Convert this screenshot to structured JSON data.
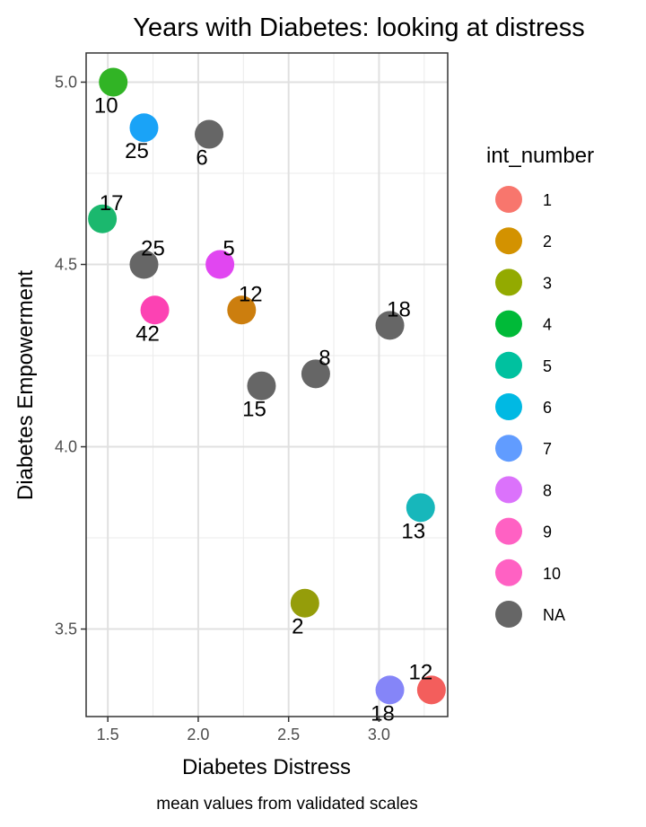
{
  "chart_data": {
    "type": "scatter",
    "title": "Years with Diabetes: looking at distress",
    "xlabel": "Diabetes Distress",
    "ylabel": "Diabetes Empowerment",
    "caption": "mean values from validated scales",
    "xlim": [
      1.38,
      3.38
    ],
    "ylim": [
      3.26,
      5.08
    ],
    "x_ticks": [
      1.5,
      2.0,
      2.5,
      3.0
    ],
    "x_tick_labels": [
      "1.5",
      "2.0",
      "2.5",
      "3.0"
    ],
    "y_ticks": [
      3.5,
      4.0,
      4.5,
      5.0
    ],
    "y_tick_labels": [
      "3.5",
      "4.0",
      "4.5",
      "5.0"
    ],
    "grid": true,
    "legend": {
      "title": "int_number",
      "position": "right",
      "entries": [
        {
          "label": "1",
          "color": "#F8766D"
        },
        {
          "label": "2",
          "color": "#D39200"
        },
        {
          "label": "3",
          "color": "#93AA00"
        },
        {
          "label": "4",
          "color": "#00BA38"
        },
        {
          "label": "5",
          "color": "#00C19F"
        },
        {
          "label": "6",
          "color": "#00B9E3"
        },
        {
          "label": "7",
          "color": "#619CFF"
        },
        {
          "label": "8",
          "color": "#DB72FB"
        },
        {
          "label": "9",
          "color": "#FF61C3"
        },
        {
          "label": "10",
          "color": "#FF61C3"
        },
        {
          "label": "NA",
          "color": "#666666"
        }
      ]
    },
    "points": [
      {
        "x": 1.53,
        "y": 5.0,
        "group": "4",
        "label": "10",
        "color": "#31B425",
        "label_pos": "below-left"
      },
      {
        "x": 1.7,
        "y": 4.875,
        "group": "7",
        "label": "25",
        "color": "#1AA3F7",
        "label_pos": "below-left"
      },
      {
        "x": 2.06,
        "y": 4.857,
        "group": "NA",
        "label": "6",
        "color": "#666666",
        "label_pos": "below-left"
      },
      {
        "x": 1.47,
        "y": 4.625,
        "group": "5",
        "label": "17",
        "color": "#1BB86E",
        "label_pos": "above-right"
      },
      {
        "x": 1.7,
        "y": 4.5,
        "group": "NA",
        "label": "25",
        "color": "#666666",
        "label_pos": "above-right"
      },
      {
        "x": 2.12,
        "y": 4.5,
        "group": "9",
        "label": "5",
        "color": "#E146F1",
        "label_pos": "above-right"
      },
      {
        "x": 1.76,
        "y": 4.375,
        "group": "10",
        "label": "42",
        "color": "#FC42B3",
        "label_pos": "below-left"
      },
      {
        "x": 2.24,
        "y": 4.375,
        "group": "2",
        "label": "12",
        "color": "#CC7E0E",
        "label_pos": "above-right"
      },
      {
        "x": 3.06,
        "y": 4.333,
        "group": "NA",
        "label": "18",
        "color": "#666666",
        "label_pos": "above-right"
      },
      {
        "x": 2.65,
        "y": 4.2,
        "group": "NA",
        "label": "8",
        "color": "#666666",
        "label_pos": "above-right"
      },
      {
        "x": 2.35,
        "y": 4.167,
        "group": "NA",
        "label": "15",
        "color": "#666666",
        "label_pos": "below-left"
      },
      {
        "x": 3.23,
        "y": 3.833,
        "group": "6",
        "label": "13",
        "color": "#17B7BB",
        "label_pos": "below-left"
      },
      {
        "x": 2.59,
        "y": 3.571,
        "group": "3",
        "label": "2",
        "color": "#959D0A",
        "label_pos": "below-left"
      },
      {
        "x": 3.06,
        "y": 3.333,
        "group": "8",
        "label": "18",
        "color": "#8585F8",
        "label_pos": "below-left"
      },
      {
        "x": 3.29,
        "y": 3.333,
        "group": "1",
        "label": "12",
        "color": "#F35E5C",
        "label_pos": "above-left"
      }
    ]
  }
}
